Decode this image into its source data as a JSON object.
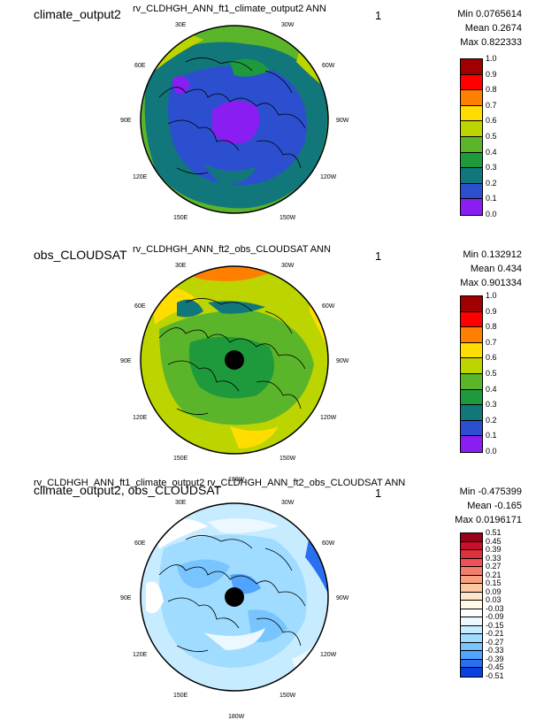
{
  "panels": [
    {
      "case_label": "climate_output2",
      "title": "rv_CLDHGH_ANN_ft1_climate_output2  ANN",
      "index": "1",
      "stats": {
        "min": "Min 0.0765614",
        "mean": "Mean 0.2674",
        "max": "Max 0.822333"
      },
      "colorbar": {
        "ticks": [
          "1.0",
          "0.9",
          "0.8",
          "0.7",
          "0.6",
          "0.5",
          "0.4",
          "0.3",
          "0.2",
          "0.1",
          "0.0"
        ],
        "colors": [
          "#a00000",
          "#ff0000",
          "#ff8000",
          "#ffdd00",
          "#bcd400",
          "#5bb52a",
          "#1e9a3c",
          "#12777a",
          "#2c4fd0",
          "#8a1ef2"
        ]
      }
    },
    {
      "case_label": "obs_CLOUDSAT",
      "title": "rv_CLDHGH_ANN_ft2_obs_CLOUDSAT  ANN",
      "index": "1",
      "stats": {
        "min": "Min 0.132912",
        "mean": "Mean 0.434",
        "max": "Max 0.901334"
      },
      "colorbar": {
        "ticks": [
          "1.0",
          "0.9",
          "0.8",
          "0.7",
          "0.6",
          "0.5",
          "0.4",
          "0.3",
          "0.2",
          "0.1",
          "0.0"
        ],
        "colors": [
          "#a00000",
          "#ff0000",
          "#ff8000",
          "#ffdd00",
          "#bcd400",
          "#5bb52a",
          "#1e9a3c",
          "#12777a",
          "#2c4fd0",
          "#8a1ef2"
        ]
      }
    },
    {
      "case_label": "climate_output2, obs_CLOUDSAT",
      "title": "rv_CLDHGH_ANN_ft1_climate_output2  rv_CLDHGH_ANN_ft2_obs_CLOUDSAT  ANN",
      "index": "1",
      "stats": {
        "min": "Min -0.475399",
        "mean": "Mean -0.165",
        "max": "Max 0.0196171"
      },
      "colorbar": {
        "ticks": [
          "0.51",
          "0.45",
          "0.39",
          "0.33",
          "0.27",
          "0.21",
          "0.15",
          "0.09",
          "0.03",
          "-0.03",
          "-0.09",
          "-0.15",
          "-0.21",
          "-0.27",
          "-0.33",
          "-0.39",
          "-0.45",
          "-0.51"
        ],
        "colors": [
          "#9a0018",
          "#c8102e",
          "#e0303a",
          "#f0505a",
          "#f47c6a",
          "#f8a080",
          "#fbc8a0",
          "#fde7c8",
          "#fffbe8",
          "#ffffff",
          "#ecf8ff",
          "#c8ecff",
          "#a0dcff",
          "#78c4ff",
          "#50a4ff",
          "#2870f0",
          "#0a40e0"
        ]
      }
    }
  ],
  "longitude_labels": [
    "30E",
    "30W",
    "60E",
    "60W",
    "90E",
    "90W",
    "120E",
    "120W",
    "150E",
    "150W",
    "180W"
  ]
}
